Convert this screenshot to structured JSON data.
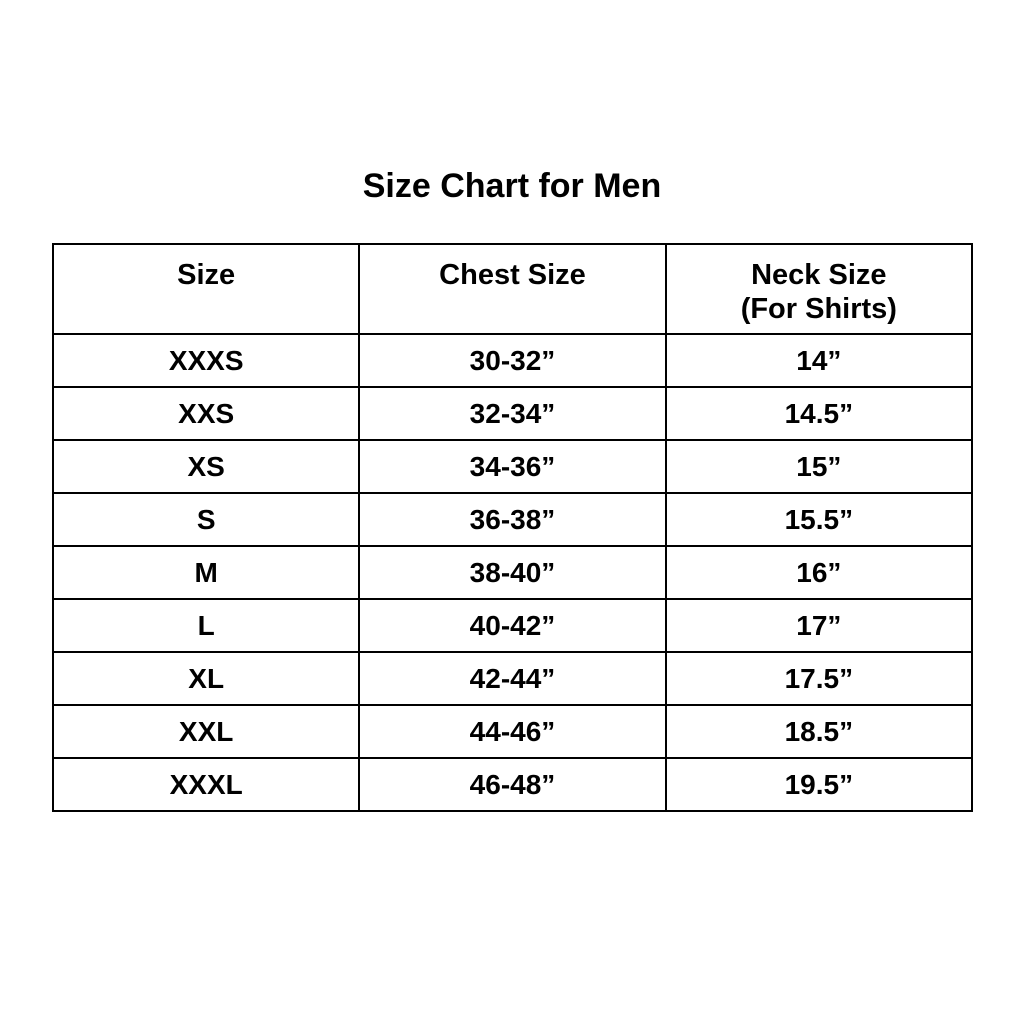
{
  "title": "Size Chart for Men",
  "colors": {
    "background": "#ffffff",
    "text": "#000000",
    "border": "#000000"
  },
  "table": {
    "headers": [
      {
        "label": "Size",
        "sub": ""
      },
      {
        "label": "Chest Size",
        "sub": ""
      },
      {
        "label": "Neck Size",
        "sub": "(For Shirts)"
      }
    ]
  },
  "chart_data": {
    "type": "table",
    "title": "Size Chart for Men",
    "columns": [
      "Size",
      "Chest Size",
      "Neck Size (For Shirts)"
    ],
    "rows": [
      [
        "XXXS",
        "30-32”",
        "14”"
      ],
      [
        "XXS",
        "32-34”",
        "14.5”"
      ],
      [
        "XS",
        "34-36”",
        "15”"
      ],
      [
        "S",
        "36-38”",
        "15.5”"
      ],
      [
        "M",
        "38-40”",
        "16”"
      ],
      [
        "L",
        "40-42”",
        "17”"
      ],
      [
        "XL",
        "42-44”",
        "17.5”"
      ],
      [
        "XXL",
        "44-46”",
        "18.5”"
      ],
      [
        "XXXL",
        "46-48”",
        "19.5”"
      ]
    ]
  }
}
